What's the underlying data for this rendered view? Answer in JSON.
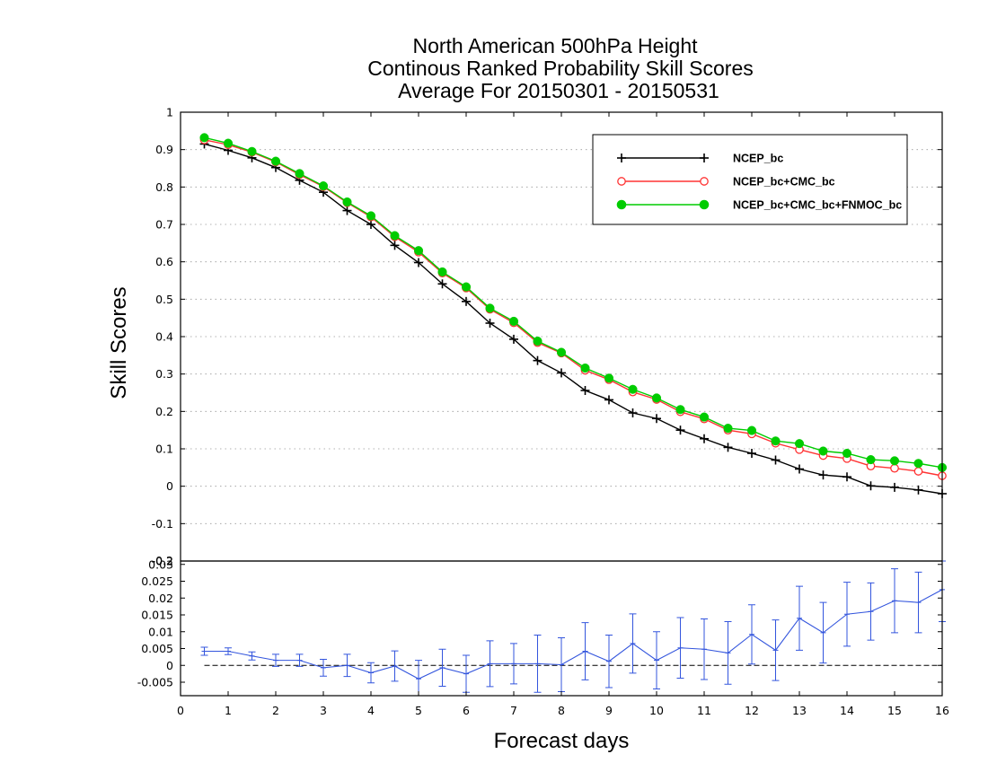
{
  "chart_data": [
    {
      "type": "line",
      "title": [
        "North American 500hPa Height",
        "Continous Ranked Probability Skill Scores",
        "Average For 20150301 - 20150531"
      ],
      "xlabel": "Forecast days",
      "ylabel": "Skill Scores",
      "xlim": [
        0,
        16
      ],
      "ylim": [
        -0.2,
        1
      ],
      "xticks": [
        "0",
        "1",
        "2",
        "3",
        "4",
        "5",
        "6",
        "7",
        "8",
        "9",
        "10",
        "11",
        "12",
        "13",
        "14",
        "15",
        "16"
      ],
      "yticks": [
        "-0.2",
        "-0.1",
        "0",
        "0.1",
        "0.2",
        "0.3",
        "0.4",
        "0.5",
        "0.6",
        "0.7",
        "0.8",
        "0.9",
        "1"
      ],
      "grid": "horizontal dotted",
      "legend_position": "top-right",
      "x": [
        0.5,
        1,
        1.5,
        2,
        2.5,
        3,
        3.5,
        4,
        4.5,
        5,
        5.5,
        6,
        6.5,
        7,
        7.5,
        8,
        8.5,
        9,
        9.5,
        10,
        10.5,
        11,
        11.5,
        12,
        12.5,
        13,
        13.5,
        14,
        14.5,
        15,
        15.5,
        16
      ],
      "series": [
        {
          "name": "NCEP_bc",
          "color": "#000000",
          "marker": "plus",
          "values": [
            0.915,
            0.898,
            0.878,
            0.852,
            0.818,
            0.786,
            0.737,
            0.7,
            0.644,
            0.598,
            0.541,
            0.494,
            0.436,
            0.393,
            0.336,
            0.303,
            0.256,
            0.231,
            0.196,
            0.181,
            0.15,
            0.127,
            0.104,
            0.088,
            0.07,
            0.046,
            0.03,
            0.025,
            0.001,
            -0.003,
            -0.01,
            -0.02
          ]
        },
        {
          "name": "NCEP_bc+CMC_bc",
          "color": "#ff3333",
          "marker": "open-circle",
          "values": [
            0.926,
            0.913,
            0.893,
            0.867,
            0.833,
            0.801,
            0.758,
            0.72,
            0.667,
            0.626,
            0.57,
            0.53,
            0.473,
            0.437,
            0.384,
            0.356,
            0.31,
            0.285,
            0.252,
            0.232,
            0.199,
            0.18,
            0.15,
            0.14,
            0.115,
            0.098,
            0.082,
            0.074,
            0.054,
            0.048,
            0.04,
            0.028
          ]
        },
        {
          "name": "NCEP_bc+CMC_bc+FNMOC_bc",
          "color": "#00cc00",
          "marker": "filled-circle",
          "values": [
            0.932,
            0.917,
            0.895,
            0.869,
            0.836,
            0.803,
            0.76,
            0.723,
            0.67,
            0.63,
            0.573,
            0.533,
            0.476,
            0.441,
            0.388,
            0.358,
            0.316,
            0.289,
            0.259,
            0.236,
            0.205,
            0.185,
            0.155,
            0.149,
            0.121,
            0.114,
            0.094,
            0.088,
            0.071,
            0.068,
            0.061,
            0.05
          ]
        }
      ]
    },
    {
      "type": "line-errorbar",
      "xlim": [
        0,
        16
      ],
      "ylim": [
        -0.009,
        0.031
      ],
      "yticks": [
        "-0.005",
        "0",
        "0.005",
        "0.01",
        "0.015",
        "0.02",
        "0.025",
        "0.03"
      ],
      "xticks": [
        "0",
        "1",
        "2",
        "3",
        "4",
        "5",
        "6",
        "7",
        "8",
        "9",
        "10",
        "11",
        "12",
        "13",
        "14",
        "15",
        "16"
      ],
      "color": "#3355dd",
      "x": [
        0.5,
        1,
        1.5,
        2,
        2.5,
        3,
        3.5,
        4,
        4.5,
        5,
        5.5,
        6,
        6.5,
        7,
        7.5,
        8,
        8.5,
        9,
        9.5,
        10,
        10.5,
        11,
        11.5,
        12,
        12.5,
        13,
        13.5,
        14,
        14.5,
        15,
        15.5,
        16
      ],
      "values": [
        0.0042,
        0.0042,
        0.0028,
        0.0015,
        0.0015,
        -0.0007,
        0.0,
        -0.0022,
        -0.0002,
        -0.004,
        -0.0007,
        -0.0025,
        0.0005,
        0.0005,
        0.0005,
        0.0002,
        0.0042,
        0.0012,
        0.0065,
        0.0015,
        0.0052,
        0.0048,
        0.0037,
        0.0092,
        0.0045,
        0.014,
        0.0097,
        0.0152,
        0.016,
        0.0192,
        0.0187,
        0.0225
      ],
      "errors": [
        0.0012,
        0.001,
        0.0012,
        0.0018,
        0.0018,
        0.0025,
        0.0033,
        0.003,
        0.0045,
        0.0055,
        0.0055,
        0.0055,
        0.0068,
        0.006,
        0.0085,
        0.008,
        0.0085,
        0.0078,
        0.0088,
        0.0085,
        0.009,
        0.009,
        0.0093,
        0.0088,
        0.009,
        0.0095,
        0.009,
        0.0095,
        0.0085,
        0.0095,
        0.009,
        0.0095
      ],
      "reference_line": 0
    }
  ]
}
